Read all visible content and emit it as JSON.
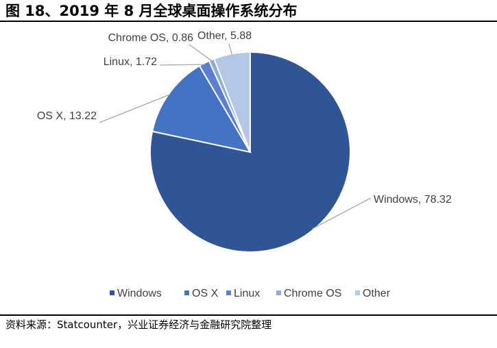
{
  "figure": {
    "title": "图 18、2019 年 8 月全球桌面操作系统分布",
    "source": "资料来源：Statcounter，兴业证券经济与金融研究院整理"
  },
  "chart_data": {
    "type": "pie",
    "title": "",
    "categories": [
      "Windows",
      "OS X",
      "Linux",
      "Chrome OS",
      "Other"
    ],
    "values": [
      78.32,
      13.22,
      1.72,
      0.86,
      5.88
    ],
    "labels": [
      "Windows, 78.32",
      "OS X, 13.22",
      "Linux, 1.72",
      "Chrome OS, 0.86",
      "Other, 5.88"
    ],
    "colors": [
      "#2f5597",
      "#4472c4",
      "#5b7fd0",
      "#8faadc",
      "#b4c7e7"
    ],
    "legend_position": "bottom",
    "start_angle": "12 o'clock",
    "direction": "clockwise"
  }
}
